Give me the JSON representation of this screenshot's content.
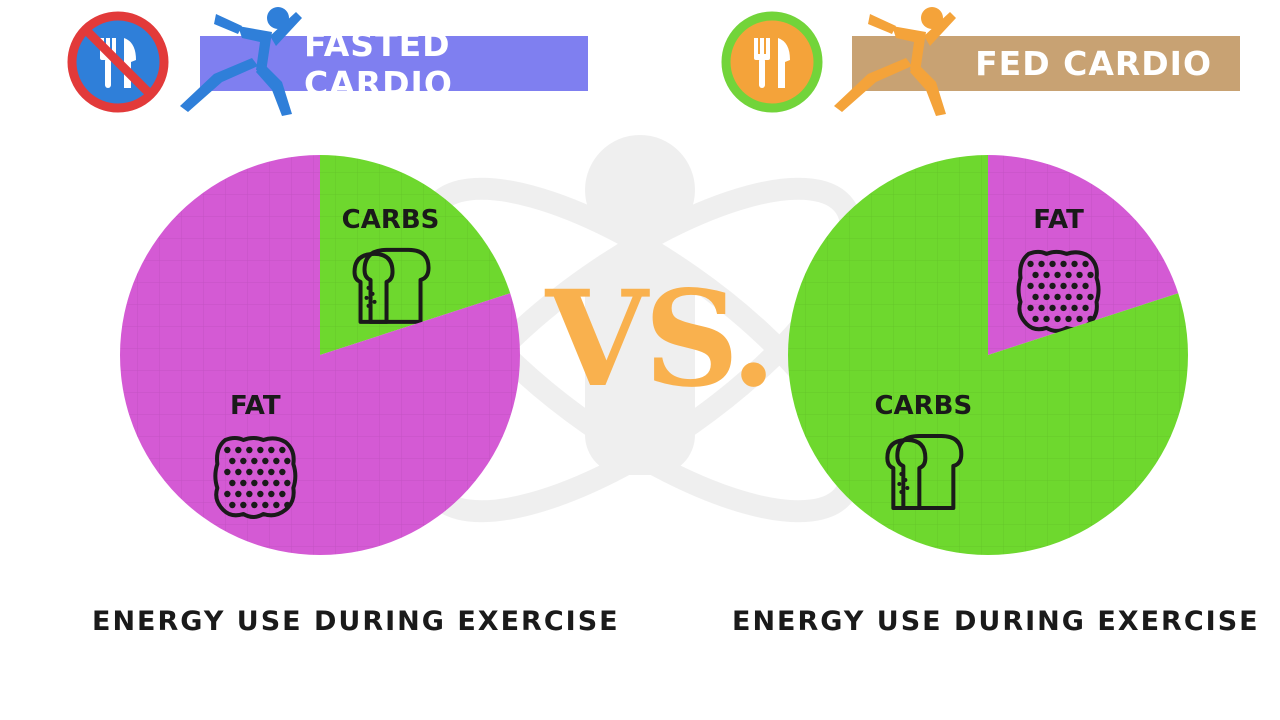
{
  "vs_text": "VS.",
  "colors": {
    "fat": "#d45ad4",
    "carbs": "#6ed82e",
    "fasted_banner": "#7f7ff0",
    "fed_banner": "#c8a273",
    "vs": "#f9b14e"
  },
  "panels": [
    {
      "banner_title": "FASTED CARDIO",
      "meal_icon": "no-fork-knife-icon",
      "runner_icon": "runner-icon",
      "caption": "ENERGY USE DURING EXERCISE"
    },
    {
      "banner_title": "FED CARDIO",
      "meal_icon": "fork-knife-icon",
      "runner_icon": "runner-icon",
      "caption": "ENERGY USE DURING EXERCISE"
    }
  ],
  "chart_data": [
    {
      "type": "pie",
      "title": "",
      "slices": [
        {
          "label": "CARBS",
          "value": 20,
          "color": "#6ed82e",
          "icon": "bread-icon"
        },
        {
          "label": "FAT",
          "value": 80,
          "color": "#d45ad4",
          "icon": "fat-cell-icon"
        }
      ],
      "start_angle_deg": 0,
      "direction": "clockwise"
    },
    {
      "type": "pie",
      "title": "",
      "slices": [
        {
          "label": "FAT",
          "value": 20,
          "color": "#d45ad4",
          "icon": "fat-cell-icon"
        },
        {
          "label": "CARBS",
          "value": 80,
          "color": "#6ed82e",
          "icon": "bread-icon"
        }
      ],
      "start_angle_deg": 0,
      "direction": "clockwise"
    }
  ]
}
